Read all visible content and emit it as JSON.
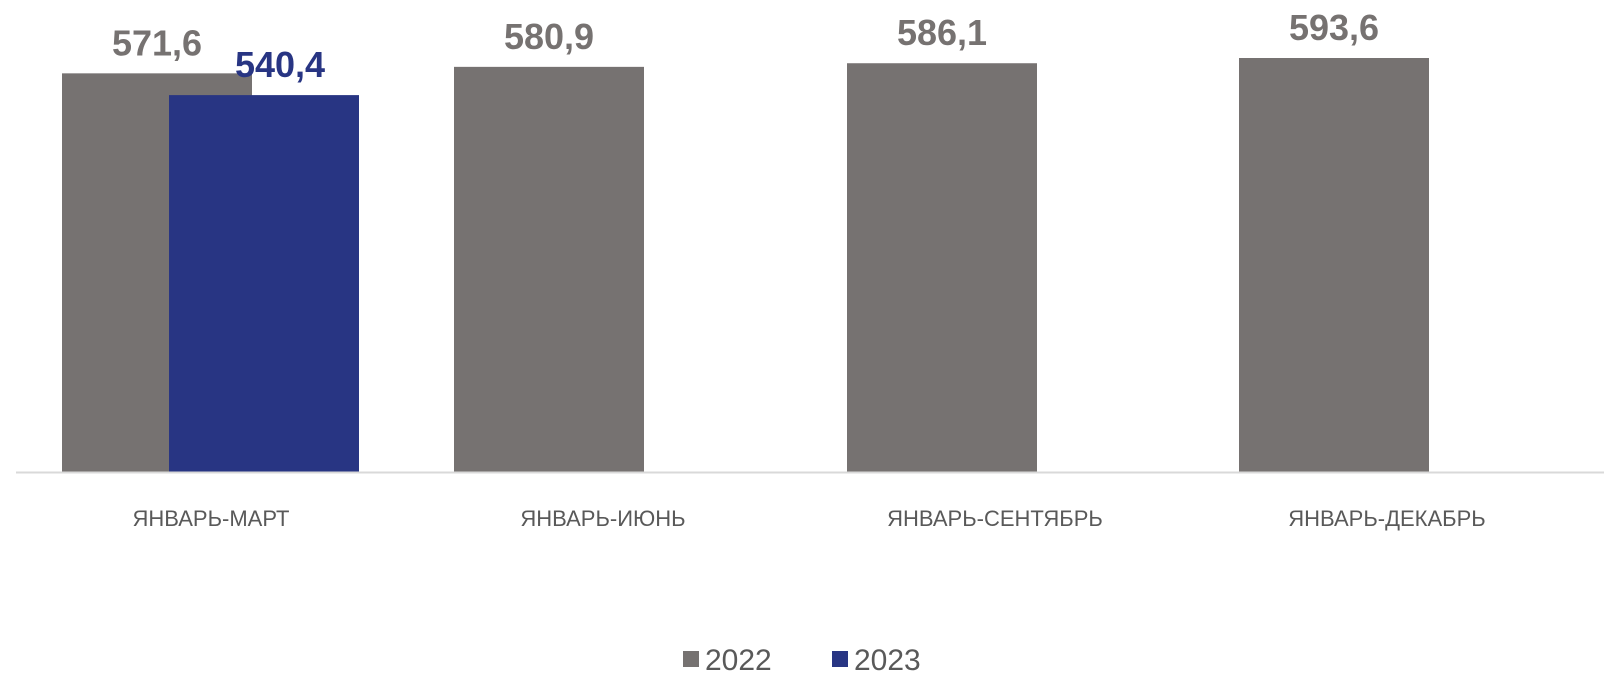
{
  "chart_data": {
    "type": "bar",
    "categories": [
      "ЯНВАРЬ-МАРТ",
      "ЯНВАРЬ-ИЮНЬ",
      "ЯНВАРЬ-СЕНТЯБРЬ",
      "ЯНВАРЬ-ДЕКАБРЬ"
    ],
    "series": [
      {
        "name": "2022",
        "color": "#767271",
        "label_color": "#767271",
        "values": [
          571.6,
          580.9,
          586.1,
          593.6
        ],
        "labels": [
          "571,6",
          "580,9",
          "586,1",
          "593,6"
        ]
      },
      {
        "name": "2023",
        "color": "#283583",
        "label_color": "#283583",
        "values": [
          540.4,
          null,
          null,
          null
        ],
        "labels": [
          "540,4",
          "",
          "",
          ""
        ]
      }
    ],
    "title": "",
    "xlabel": "",
    "ylabel": "",
    "ylim": [
      0,
      600
    ],
    "grid": false,
    "legend": "bottom-center",
    "axis_color": "#D9D9D9"
  }
}
